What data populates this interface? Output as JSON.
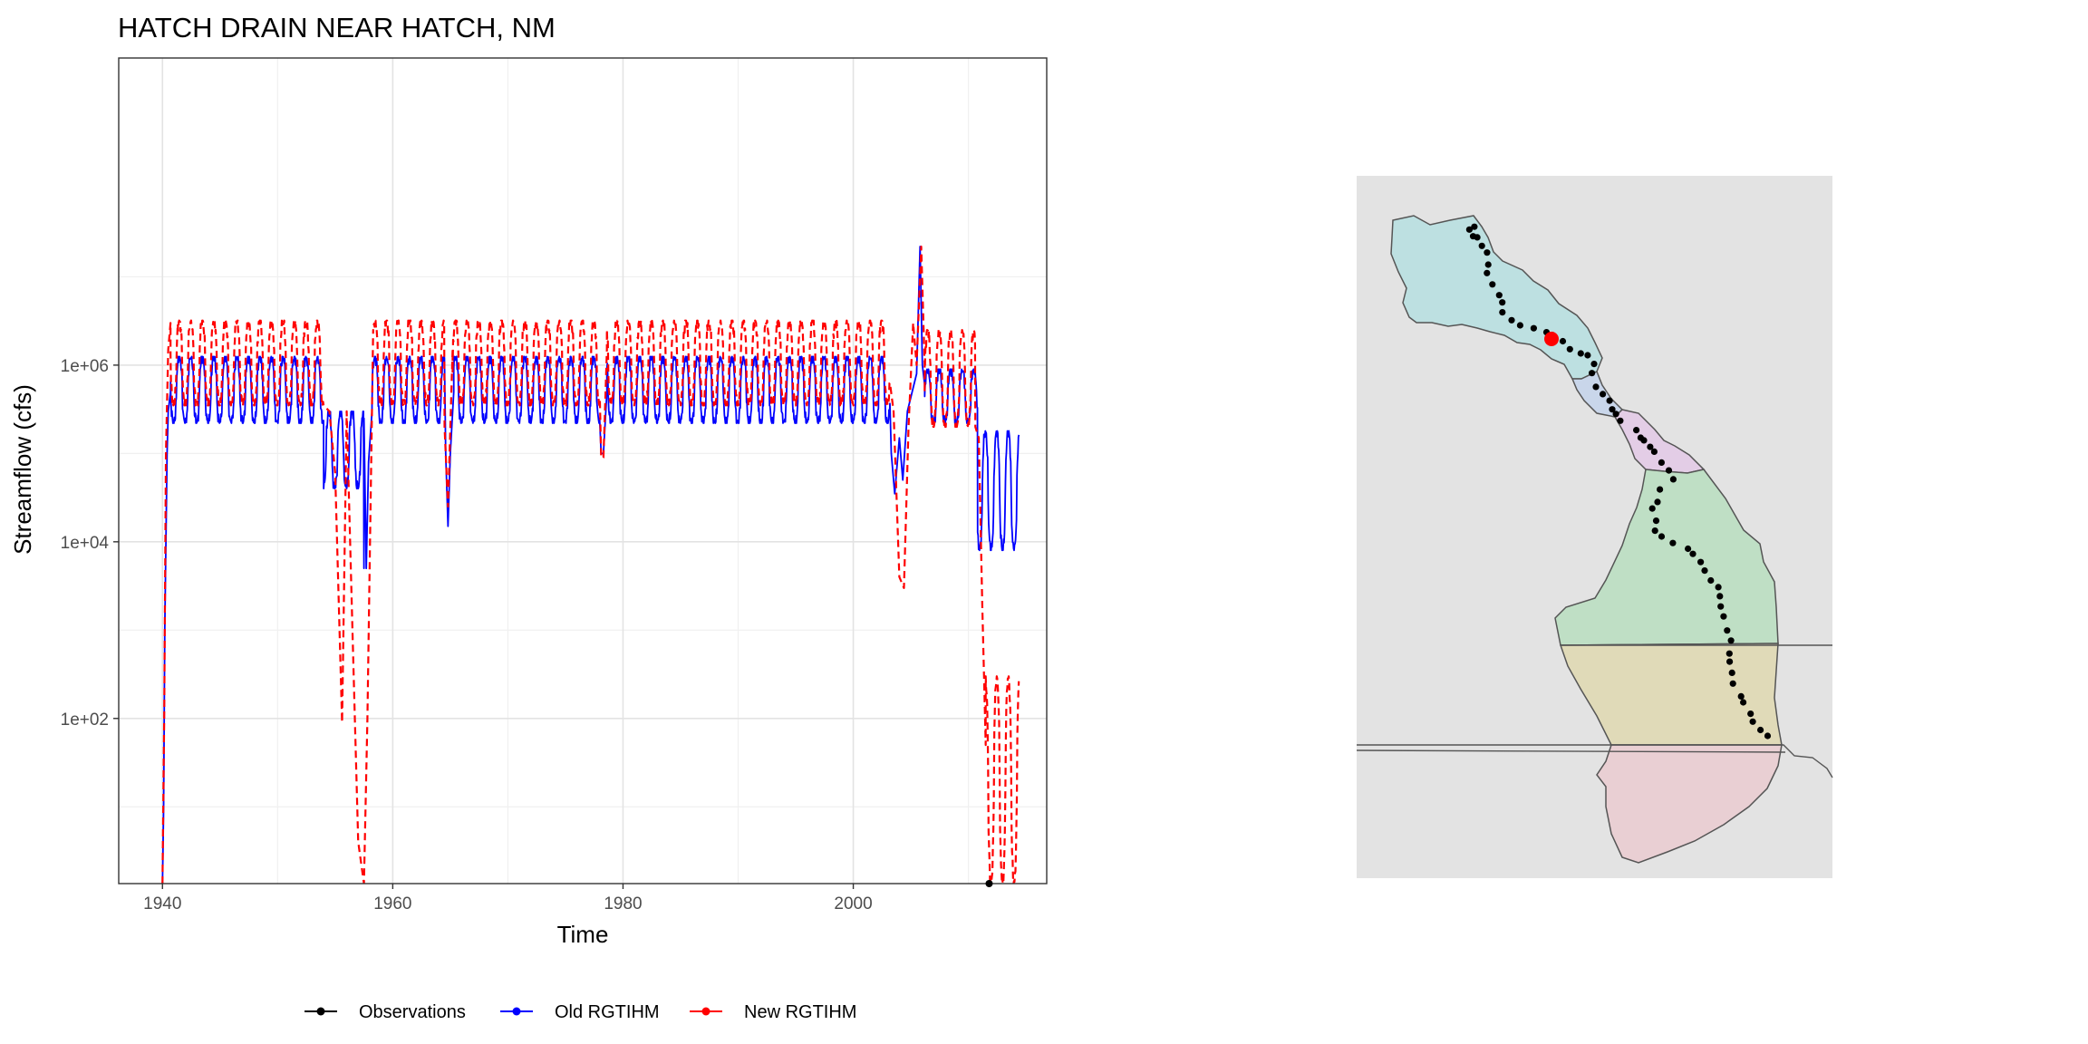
{
  "chart_data": {
    "type": "line",
    "title": "HATCH DRAIN NEAR HATCH, NM",
    "xlabel": "Time",
    "ylabel": "Streamflow (cfs)",
    "x_scale": "date (year)",
    "y_scale": "log10",
    "xlim": [
      1936.2,
      2016.8
    ],
    "ylim": [
      1.35,
      3000000000
    ],
    "x_ticks": [
      1940,
      1960,
      1980,
      2000
    ],
    "y_ticks": [
      {
        "value": 100,
        "label": "1e+02"
      },
      {
        "value": 10000,
        "label": "1e+04"
      },
      {
        "value": 1000000,
        "label": "1e+06"
      }
    ],
    "y_minor_ticks": [
      10,
      1000,
      100000,
      10000000
    ],
    "grid": true,
    "legend_position": "bottom",
    "series": [
      {
        "name": "Observations",
        "color": "#000000",
        "style": "line with points",
        "x": [
          2011.8
        ],
        "y": [
          1.35
        ]
      },
      {
        "name": "Old RGTIHM",
        "color": "#0000ff",
        "style": "solid",
        "segments": [
          {
            "x": [
              1940.0,
              1940.1,
              1940.2,
              1940.3,
              1940.4,
              1940.5,
              1940.7
            ],
            "y": [
              1.35,
              10,
              1000,
              10000,
              100000,
              300000,
              500000
            ]
          },
          {
            "start": 1940.7,
            "end": 1954.0,
            "high": 1250000,
            "low": 220000
          },
          {
            "start": 1954.0,
            "end": 1957.5,
            "high": 300000,
            "low": 40000
          },
          {
            "x": [
              1957.5,
              1957.7,
              1957.9,
              1958.2
            ],
            "y": [
              5000,
              5000,
              80000,
              300000
            ]
          },
          {
            "start": 1958.2,
            "end": 1964.5,
            "high": 1250000,
            "low": 220000
          },
          {
            "x": [
              1964.6,
              1964.8,
              1965.0,
              1965.3
            ],
            "y": [
              100000,
              15000,
              100000,
              500000
            ]
          },
          {
            "start": 1965.3,
            "end": 1978.0,
            "high": 1250000,
            "low": 220000
          },
          {
            "x": [
              1978.1,
              1978.3,
              1978.6
            ],
            "y": [
              100000,
              100000,
              500000
            ]
          },
          {
            "start": 1978.6,
            "end": 2003.2,
            "high": 1250000,
            "low": 220000
          },
          {
            "x": [
              2003.3,
              2003.6,
              2004.0,
              2004.3,
              2004.7
            ],
            "y": [
              100000,
              35000,
              150000,
              50000,
              300000
            ]
          },
          {
            "x": [
              2005.5,
              2005.8,
              2006.0,
              2006.2
            ],
            "y": [
              800000,
              22000000,
              1000000,
              600000
            ]
          },
          {
            "start": 2006.2,
            "end": 2010.8,
            "high": 900000,
            "low": 220000
          },
          {
            "start": 2010.8,
            "end": 2014.4,
            "high": 180000,
            "low": 8000
          }
        ]
      },
      {
        "name": "New RGTIHM",
        "color": "#ff0000",
        "style": "dashed",
        "segments": [
          {
            "x": [
              1940.0,
              1940.15,
              1940.3,
              1940.5,
              1940.7
            ],
            "y": [
              1.35,
              100,
              100000,
              1500000,
              3000000
            ]
          },
          {
            "start": 1940.7,
            "end": 1954.0,
            "high": 3200000,
            "low": 350000
          },
          {
            "x": [
              1954.5,
              1955.0,
              1955.6,
              1956.0,
              1956.5,
              1957.0,
              1957.5,
              1957.8,
              1958.3
            ],
            "y": [
              300000,
              60000,
              90,
              300000,
              1000,
              4,
              1.35,
              100,
              2500000
            ]
          },
          {
            "start": 1958.3,
            "end": 1964.5,
            "high": 3200000,
            "low": 350000
          },
          {
            "x": [
              1964.5,
              1964.8,
              1965.2
            ],
            "y": [
              200000,
              25000,
              1500000
            ]
          },
          {
            "start": 1965.2,
            "end": 1978.0,
            "high": 3200000,
            "low": 350000
          },
          {
            "x": [
              1978.1,
              1978.3,
              1978.6
            ],
            "y": [
              90000,
              90000,
              1500000
            ]
          },
          {
            "start": 1978.6,
            "end": 2003.2,
            "high": 3200000,
            "low": 350000
          },
          {
            "x": [
              2003.5,
              2004.0,
              2004.4,
              2004.8,
              2005.2
            ],
            "y": [
              300000,
              4000,
              3000,
              200000,
              3000000
            ]
          },
          {
            "x": [
              2005.5,
              2005.9,
              2006.2
            ],
            "y": [
              1000000,
              22000000,
              1000000
            ]
          },
          {
            "start": 2006.2,
            "end": 2010.6,
            "high": 2500000,
            "low": 200000
          },
          {
            "x": [
              2010.6,
              2010.9,
              2011.2,
              2011.5
            ],
            "y": [
              200000,
              150000,
              2000,
              50
            ]
          },
          {
            "start": 2011.5,
            "end": 2014.4,
            "high": 300,
            "low": 1.35
          }
        ]
      }
    ]
  },
  "map": {
    "inset": "watershed zone map with gage locations (no text)",
    "zone_colors": [
      "#bde0e1",
      "#c9d6ea",
      "#e3cde6",
      "#bfdfc5",
      "#e0dab8",
      "#e9cfd3"
    ],
    "background_color": "#e3e3e3",
    "gage_color": "#000000",
    "selected_gage_color": "#ff0000"
  }
}
